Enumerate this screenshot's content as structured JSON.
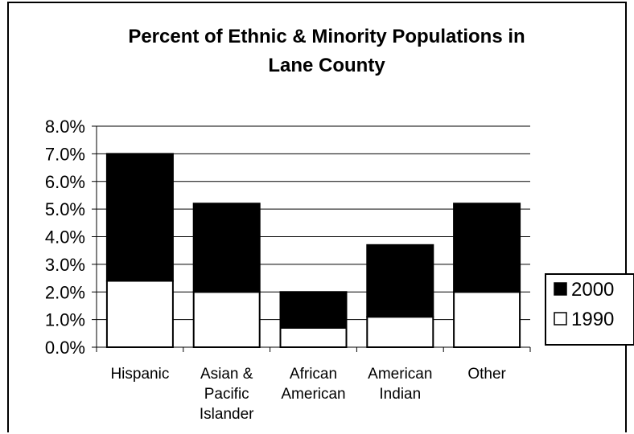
{
  "chart_data": {
    "type": "bar",
    "stacked": true,
    "title": [
      "Percent of Ethnic & Minority Populations in",
      "Lane County"
    ],
    "categories": [
      [
        "Hispanic"
      ],
      [
        "Asian &",
        "Pacific",
        "Islander"
      ],
      [
        "African",
        "American"
      ],
      [
        "American",
        "Indian"
      ],
      [
        "Other"
      ]
    ],
    "series": [
      {
        "name": "1990",
        "color": "#ffffff",
        "values": [
          2.4,
          2.0,
          0.7,
          1.1,
          2.0
        ]
      },
      {
        "name": "2000",
        "color": "#000000",
        "values": [
          4.6,
          3.2,
          1.3,
          2.6,
          3.2
        ]
      }
    ],
    "ylim": [
      0,
      8
    ],
    "yticks": [
      "0.0%",
      "1.0%",
      "2.0%",
      "3.0%",
      "4.0%",
      "5.0%",
      "6.0%",
      "7.0%",
      "8.0%"
    ],
    "grid": true,
    "legend": {
      "position": "right",
      "entries": [
        {
          "name": "2000",
          "color": "#000000"
        },
        {
          "name": "1990",
          "color": "#ffffff"
        }
      ]
    }
  }
}
